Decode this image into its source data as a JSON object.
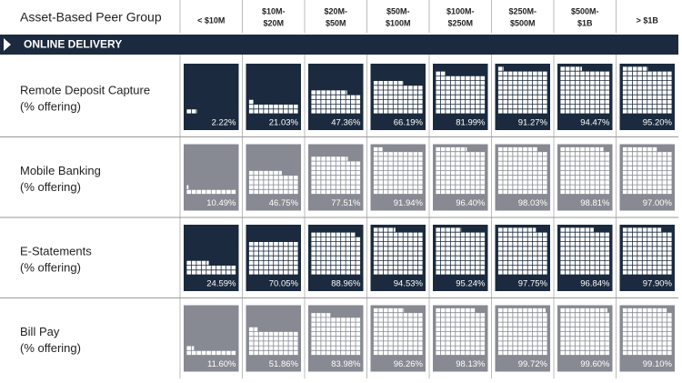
{
  "header": {
    "title": "Asset-Based Peer Group",
    "section": "ONLINE DELIVERY"
  },
  "columns": [
    [
      "< $10M"
    ],
    [
      "$10M-",
      "$20M"
    ],
    [
      "$20M-",
      "$50M"
    ],
    [
      "$50M-",
      "$100M"
    ],
    [
      "$100M-",
      "$250M"
    ],
    [
      "$250M-",
      "$500M"
    ],
    [
      "$500M-",
      "$1B"
    ],
    [
      "> $1B"
    ]
  ],
  "rows": [
    {
      "name": "Remote Deposit Capture",
      "note": "(% offering)",
      "color": "#1b2a3e",
      "values": [
        2.22,
        21.03,
        47.36,
        66.19,
        81.99,
        91.27,
        94.47,
        95.2
      ],
      "value_labels": [
        "2.22%",
        "21.03%",
        "47.36%",
        "66.19%",
        "81.99%",
        "91.27%",
        "94.47%",
        "95.20%"
      ]
    },
    {
      "name": "Mobile Banking",
      "note": "(% offering)",
      "color": "#878a92",
      "values": [
        10.49,
        46.75,
        77.51,
        91.94,
        96.4,
        98.03,
        98.81,
        97.0
      ],
      "value_labels": [
        "10.49%",
        "46.75%",
        "77.51%",
        "91.94%",
        "96.40%",
        "98.03%",
        "98.81%",
        "97.00%"
      ]
    },
    {
      "name": "E-Statements",
      "note": "(% offering)",
      "color": "#1b2a3e",
      "values": [
        24.59,
        70.05,
        88.96,
        94.53,
        95.24,
        97.75,
        96.84,
        97.9
      ],
      "value_labels": [
        "24.59%",
        "70.05%",
        "88.96%",
        "94.53%",
        "95.24%",
        "97.75%",
        "96.84%",
        "97.90%"
      ]
    },
    {
      "name": "Bill Pay",
      "note": "(% offering)",
      "color": "#878a92",
      "values": [
        11.6,
        51.86,
        83.98,
        96.26,
        98.13,
        99.72,
        99.6,
        99.1
      ],
      "value_labels": [
        "11.60%",
        "51.86%",
        "83.98%",
        "96.26%",
        "98.13%",
        "99.72%",
        "99.60%",
        "99.10%"
      ]
    }
  ]
}
